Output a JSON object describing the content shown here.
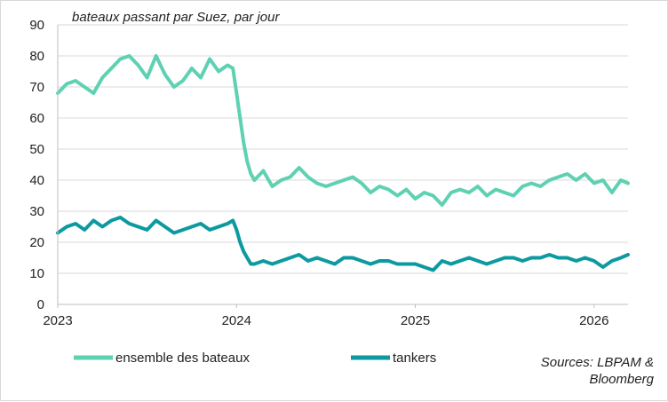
{
  "chart_data": {
    "type": "line",
    "title": "bateaux passant par Suez, par jour",
    "xlabel": "",
    "ylabel": "",
    "ylim": [
      0,
      90
    ],
    "xlim": [
      2023.0,
      2026.19
    ],
    "x_ticks": [
      2023,
      2024,
      2025,
      2026
    ],
    "x_tick_labels": [
      "2023",
      "2024",
      "2025",
      "2026"
    ],
    "y_ticks": [
      0,
      10,
      20,
      30,
      40,
      50,
      60,
      70,
      80,
      90
    ],
    "y_tick_labels": [
      "0",
      "10",
      "20",
      "30",
      "40",
      "50",
      "60",
      "70",
      "80",
      "90"
    ],
    "grid": "horizontal",
    "legend": "bottom",
    "source": "Sources: LBPAM & Bloomberg",
    "series": [
      {
        "name": "ensemble des bateaux",
        "color": "#5fd1b3",
        "x": [
          2023.0,
          2023.05,
          2023.1,
          2023.15,
          2023.2,
          2023.25,
          2023.3,
          2023.35,
          2023.4,
          2023.45,
          2023.5,
          2023.55,
          2023.6,
          2023.65,
          2023.7,
          2023.75,
          2023.8,
          2023.85,
          2023.9,
          2023.95,
          2023.98,
          2024.0,
          2024.02,
          2024.04,
          2024.06,
          2024.08,
          2024.1,
          2024.15,
          2024.2,
          2024.25,
          2024.3,
          2024.35,
          2024.4,
          2024.45,
          2024.5,
          2024.55,
          2024.6,
          2024.65,
          2024.7,
          2024.75,
          2024.8,
          2024.85,
          2024.9,
          2024.95,
          2025.0,
          2025.05,
          2025.1,
          2025.15,
          2025.2,
          2025.25,
          2025.3,
          2025.35,
          2025.4,
          2025.45,
          2025.5,
          2025.55,
          2025.6,
          2025.65,
          2025.7,
          2025.75,
          2025.8,
          2025.85,
          2025.9,
          2025.95,
          2026.0,
          2026.05,
          2026.1,
          2026.15,
          2026.19
        ],
        "values": [
          68,
          71,
          72,
          70,
          68,
          73,
          76,
          79,
          80,
          77,
          73,
          80,
          74,
          70,
          72,
          76,
          73,
          79,
          75,
          77,
          76,
          68,
          60,
          52,
          46,
          42,
          40,
          43,
          38,
          40,
          41,
          44,
          41,
          39,
          38,
          39,
          40,
          41,
          39,
          36,
          38,
          37,
          35,
          37,
          34,
          36,
          35,
          32,
          36,
          37,
          36,
          38,
          35,
          37,
          36,
          35,
          38,
          39,
          38,
          40,
          41,
          42,
          40,
          42,
          39,
          40,
          36,
          40,
          39
        ]
      },
      {
        "name": "tankers",
        "color": "#0c9aa0",
        "x": [
          2023.0,
          2023.05,
          2023.1,
          2023.15,
          2023.2,
          2023.25,
          2023.3,
          2023.35,
          2023.4,
          2023.45,
          2023.5,
          2023.55,
          2023.6,
          2023.65,
          2023.7,
          2023.75,
          2023.8,
          2023.85,
          2023.9,
          2023.95,
          2023.98,
          2024.0,
          2024.02,
          2024.04,
          2024.06,
          2024.08,
          2024.1,
          2024.15,
          2024.2,
          2024.25,
          2024.3,
          2024.35,
          2024.4,
          2024.45,
          2024.5,
          2024.55,
          2024.6,
          2024.65,
          2024.7,
          2024.75,
          2024.8,
          2024.85,
          2024.9,
          2024.95,
          2025.0,
          2025.05,
          2025.1,
          2025.15,
          2025.2,
          2025.25,
          2025.3,
          2025.35,
          2025.4,
          2025.45,
          2025.5,
          2025.55,
          2025.6,
          2025.65,
          2025.7,
          2025.75,
          2025.8,
          2025.85,
          2025.9,
          2025.95,
          2026.0,
          2026.05,
          2026.1,
          2026.15,
          2026.19
        ],
        "values": [
          23,
          25,
          26,
          24,
          27,
          25,
          27,
          28,
          26,
          25,
          24,
          27,
          25,
          23,
          24,
          25,
          26,
          24,
          25,
          26,
          27,
          24,
          20,
          17,
          15,
          13,
          13,
          14,
          13,
          14,
          15,
          16,
          14,
          15,
          14,
          13,
          15,
          15,
          14,
          13,
          14,
          14,
          13,
          13,
          13,
          12,
          11,
          14,
          13,
          14,
          15,
          14,
          13,
          14,
          15,
          15,
          14,
          15,
          15,
          16,
          15,
          15,
          14,
          15,
          14,
          12,
          14,
          15,
          16
        ]
      }
    ]
  }
}
